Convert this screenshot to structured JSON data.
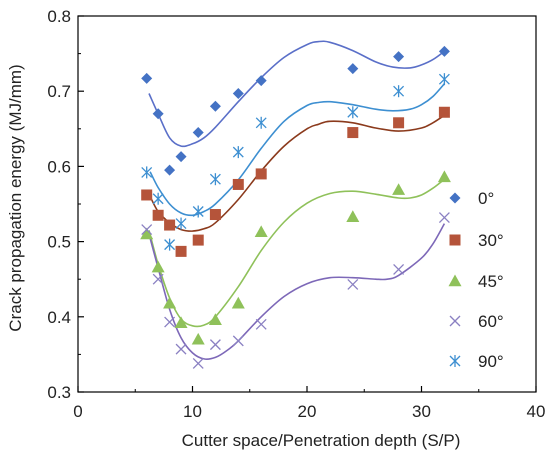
{
  "chart_data": {
    "type": "scatter",
    "xlabel": "Cutter space/Penetration depth (S/P)",
    "ylabel": "Crack propagation energy (MJ/mm)",
    "xlim": [
      0,
      40
    ],
    "ylim": [
      0.3,
      0.8
    ],
    "xticks": [
      "0",
      "10",
      "20",
      "30",
      "40"
    ],
    "yticks": [
      "0.3",
      "0.4",
      "0.5",
      "0.6",
      "0.7",
      "0.8"
    ],
    "grid": false,
    "legend_position": "right",
    "series": [
      {
        "name": "0°",
        "marker": "diamond",
        "color": "#4472c4",
        "x": [
          6,
          7,
          8,
          9,
          10.5,
          12,
          14,
          16,
          24,
          28,
          32
        ],
        "y": [
          0.717,
          0.67,
          0.595,
          0.613,
          0.645,
          0.68,
          0.697,
          0.714,
          0.73,
          0.746,
          0.753
        ],
        "fit_color": "#5a6fc8",
        "fit": [
          [
            6.2,
            0.697
          ],
          [
            7,
            0.67
          ],
          [
            8,
            0.638
          ],
          [
            9,
            0.627
          ],
          [
            10,
            0.63
          ],
          [
            11,
            0.638
          ],
          [
            12,
            0.652
          ],
          [
            14,
            0.686
          ],
          [
            16,
            0.718
          ],
          [
            18,
            0.745
          ],
          [
            20,
            0.762
          ],
          [
            21,
            0.766
          ],
          [
            22,
            0.765
          ],
          [
            24,
            0.754
          ],
          [
            26,
            0.739
          ],
          [
            27.5,
            0.732
          ],
          [
            29,
            0.731
          ],
          [
            30,
            0.735
          ],
          [
            31,
            0.742
          ],
          [
            32,
            0.753
          ]
        ]
      },
      {
        "name": "30°",
        "marker": "square",
        "color": "#b5543a",
        "x": [
          6,
          7,
          8,
          9,
          10.5,
          12,
          14,
          16,
          24,
          28,
          32
        ],
        "y": [
          0.562,
          0.535,
          0.522,
          0.487,
          0.502,
          0.536,
          0.576,
          0.59,
          0.645,
          0.658,
          0.672
        ],
        "fit_color": "#8b3a1c",
        "fit": [
          [
            6.3,
            0.56
          ],
          [
            7,
            0.54
          ],
          [
            8,
            0.525
          ],
          [
            9,
            0.516
          ],
          [
            10,
            0.514
          ],
          [
            11,
            0.517
          ],
          [
            12,
            0.525
          ],
          [
            14,
            0.556
          ],
          [
            16,
            0.594
          ],
          [
            18,
            0.627
          ],
          [
            20,
            0.65
          ],
          [
            21,
            0.656
          ],
          [
            22,
            0.66
          ],
          [
            24,
            0.658
          ],
          [
            26,
            0.651
          ],
          [
            28,
            0.647
          ],
          [
            30,
            0.651
          ],
          [
            31,
            0.658
          ],
          [
            32,
            0.668
          ]
        ]
      },
      {
        "name": "45°",
        "marker": "triangle",
        "color": "#8fc15a",
        "x": [
          6,
          7,
          8,
          9,
          10.5,
          12,
          14,
          16,
          24,
          28,
          32
        ],
        "y": [
          0.51,
          0.466,
          0.418,
          0.392,
          0.37,
          0.396,
          0.418,
          0.513,
          0.533,
          0.569,
          0.586
        ],
        "fit_color": "#8fc15a",
        "fit": [
          [
            6.2,
            0.515
          ],
          [
            7,
            0.47
          ],
          [
            8,
            0.425
          ],
          [
            9,
            0.397
          ],
          [
            10,
            0.388
          ],
          [
            11,
            0.389
          ],
          [
            12,
            0.4
          ],
          [
            14,
            0.44
          ],
          [
            16,
            0.488
          ],
          [
            18,
            0.526
          ],
          [
            20,
            0.551
          ],
          [
            22,
            0.564
          ],
          [
            24,
            0.567
          ],
          [
            26,
            0.563
          ],
          [
            28,
            0.558
          ],
          [
            29,
            0.558
          ],
          [
            30,
            0.562
          ],
          [
            31,
            0.571
          ],
          [
            32,
            0.583
          ]
        ]
      },
      {
        "name": "60°",
        "marker": "x",
        "color": "#8a80c2",
        "x": [
          6,
          7,
          8,
          9,
          10.5,
          12,
          14,
          16,
          24,
          28,
          32
        ],
        "y": [
          0.516,
          0.45,
          0.393,
          0.357,
          0.338,
          0.363,
          0.368,
          0.39,
          0.443,
          0.463,
          0.532
        ],
        "fit_color": "#7d68b8",
        "fit": [
          [
            6.2,
            0.51
          ],
          [
            7,
            0.465
          ],
          [
            8,
            0.41
          ],
          [
            9,
            0.372
          ],
          [
            10,
            0.352
          ],
          [
            11,
            0.344
          ],
          [
            12,
            0.346
          ],
          [
            13,
            0.355
          ],
          [
            14,
            0.368
          ],
          [
            16,
            0.4
          ],
          [
            18,
            0.427
          ],
          [
            20,
            0.444
          ],
          [
            22,
            0.452
          ],
          [
            24,
            0.452
          ],
          [
            26,
            0.45
          ],
          [
            27,
            0.45
          ],
          [
            28,
            0.455
          ],
          [
            30,
            0.478
          ],
          [
            31,
            0.497
          ],
          [
            32,
            0.524
          ]
        ]
      },
      {
        "name": "90°",
        "marker": "asterisk",
        "color": "#3d8fd1",
        "x": [
          6,
          7,
          8,
          9,
          10.5,
          12,
          14,
          16,
          24,
          28,
          32
        ],
        "y": [
          0.592,
          0.557,
          0.496,
          0.524,
          0.54,
          0.583,
          0.619,
          0.658,
          0.672,
          0.7,
          0.716
        ],
        "fit_color": "#3d8fd1",
        "fit": [
          [
            6.3,
            0.593
          ],
          [
            7,
            0.572
          ],
          [
            8,
            0.55
          ],
          [
            9,
            0.538
          ],
          [
            10,
            0.535
          ],
          [
            11,
            0.54
          ],
          [
            12,
            0.55
          ],
          [
            14,
            0.582
          ],
          [
            16,
            0.624
          ],
          [
            18,
            0.66
          ],
          [
            20,
            0.681
          ],
          [
            21,
            0.685
          ],
          [
            22,
            0.686
          ],
          [
            24,
            0.682
          ],
          [
            26,
            0.676
          ],
          [
            27.5,
            0.674
          ],
          [
            29,
            0.676
          ],
          [
            30,
            0.682
          ],
          [
            31,
            0.693
          ],
          [
            32,
            0.71
          ]
        ]
      }
    ]
  }
}
